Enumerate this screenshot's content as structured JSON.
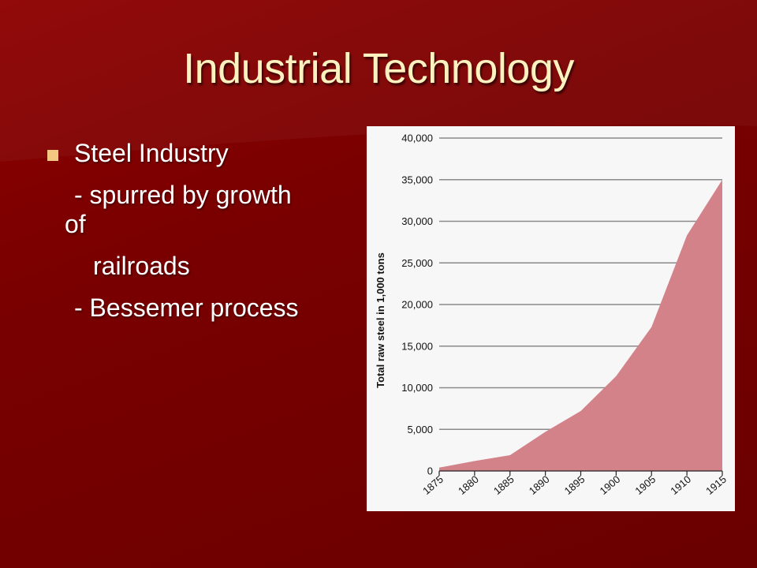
{
  "slide": {
    "title": "Industrial Technology",
    "bullets": [
      {
        "text": "Steel Industry",
        "sub": [
          "- spurred by growth",
          "of",
          "railroads",
          "- Bessemer process"
        ]
      }
    ]
  },
  "colors": {
    "background": "#7a0000",
    "title": "#fbf2c0",
    "bullet_marker": "#f5c882",
    "area_fill": "#d4828a",
    "gridline": "#8a8a8a"
  },
  "chart_data": {
    "type": "area",
    "title": "",
    "xlabel": "",
    "ylabel": "Total raw steel in 1,000 tons",
    "x": [
      1875,
      1880,
      1885,
      1890,
      1895,
      1900,
      1905,
      1910,
      1915
    ],
    "x_ticks": [
      "1875",
      "1880",
      "1885",
      "1890",
      "1895",
      "1900",
      "1905",
      "1910",
      "1915"
    ],
    "series": [
      {
        "values": [
          400,
          1200,
          1900,
          4700,
          7200,
          11400,
          17300,
          28300,
          35000
        ]
      }
    ],
    "ylim": [
      0,
      40000
    ],
    "y_ticks": [
      0,
      5000,
      10000,
      15000,
      20000,
      25000,
      30000,
      35000,
      40000
    ],
    "y_tick_labels": [
      "0",
      "5,000",
      "10,000",
      "15,000",
      "20,000",
      "25,000",
      "30,000",
      "35,000",
      "40,000"
    ],
    "grid": true,
    "legend": "none"
  }
}
